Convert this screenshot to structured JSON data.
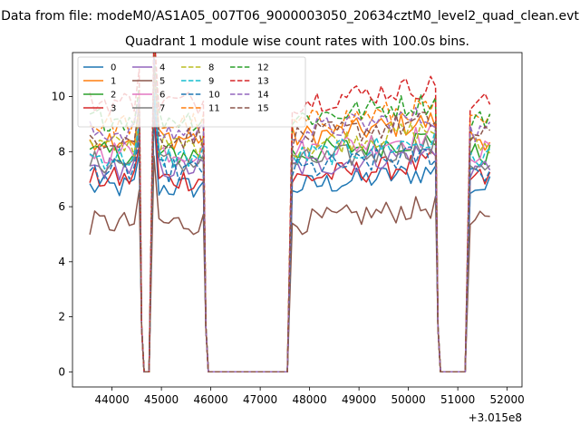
{
  "figure": {
    "suptitle": "Data from file: modeM0/AS1A05_007T06_9000003050_20634cztM0_level2_quad_clean.evt",
    "title": "Quadrant 1 module wise count rates with 100.0s bins."
  },
  "chart_data": {
    "type": "line",
    "title": "Quadrant 1 module wise count rates with 100.0s bins.",
    "xlabel": "",
    "ylabel": "",
    "x_offset_label": "+3.015e8",
    "xlim": [
      43200,
      52300
    ],
    "ylim": [
      -0.55,
      11.6
    ],
    "xticks": [
      44000,
      45000,
      46000,
      47000,
      48000,
      49000,
      50000,
      51000,
      52000
    ],
    "xtick_labels": [
      "44000",
      "45000",
      "46000",
      "47000",
      "48000",
      "49000",
      "50000",
      "51000",
      "52000"
    ],
    "yticks": [
      0,
      2,
      4,
      6,
      8,
      10
    ],
    "ytick_labels": [
      "0",
      "2",
      "4",
      "6",
      "8",
      "10"
    ],
    "grid": false,
    "legend": {
      "placement": "top-left",
      "ncol": 4
    },
    "segments": [
      {
        "x_start": 43550,
        "x_end": 44550
      },
      {
        "x_start": 44850,
        "x_end": 45850
      },
      {
        "x_start": 47650,
        "x_end": 50550
      },
      {
        "x_start": 51250,
        "x_end": 51650
      }
    ],
    "series": [
      {
        "name": "0",
        "color": "#1f77b4",
        "dash": "solid",
        "level": 6.7
      },
      {
        "name": "1",
        "color": "#ff7f0e",
        "dash": "solid",
        "level": 8.5
      },
      {
        "name": "2",
        "color": "#2ca02c",
        "dash": "solid",
        "level": 7.9
      },
      {
        "name": "3",
        "color": "#d62728",
        "dash": "solid",
        "level": 7.0
      },
      {
        "name": "4",
        "color": "#9467bd",
        "dash": "solid",
        "level": 7.4
      },
      {
        "name": "5",
        "color": "#8c564b",
        "dash": "solid",
        "level": 5.4
      },
      {
        "name": "6",
        "color": "#e377c2",
        "dash": "solid",
        "level": 8.0
      },
      {
        "name": "7",
        "color": "#7f7f7f",
        "dash": "solid",
        "level": 7.6
      },
      {
        "name": "8",
        "color": "#bcbd22",
        "dash": "dashed",
        "level": 8.2
      },
      {
        "name": "9",
        "color": "#17becf",
        "dash": "dashed",
        "level": 7.8
      },
      {
        "name": "10",
        "color": "#1f77b4",
        "dash": "dashed",
        "level": 7.3
      },
      {
        "name": "11",
        "color": "#ff7f0e",
        "dash": "dashed",
        "level": 9.0
      },
      {
        "name": "12",
        "color": "#2ca02c",
        "dash": "dashed",
        "level": 9.2
      },
      {
        "name": "13",
        "color": "#d62728",
        "dash": "dashed",
        "level": 9.8
      },
      {
        "name": "14",
        "color": "#9467bd",
        "dash": "dashed",
        "level": 8.7
      },
      {
        "name": "15",
        "color": "#8c564b",
        "dash": "dashed",
        "level": 8.5
      }
    ]
  }
}
